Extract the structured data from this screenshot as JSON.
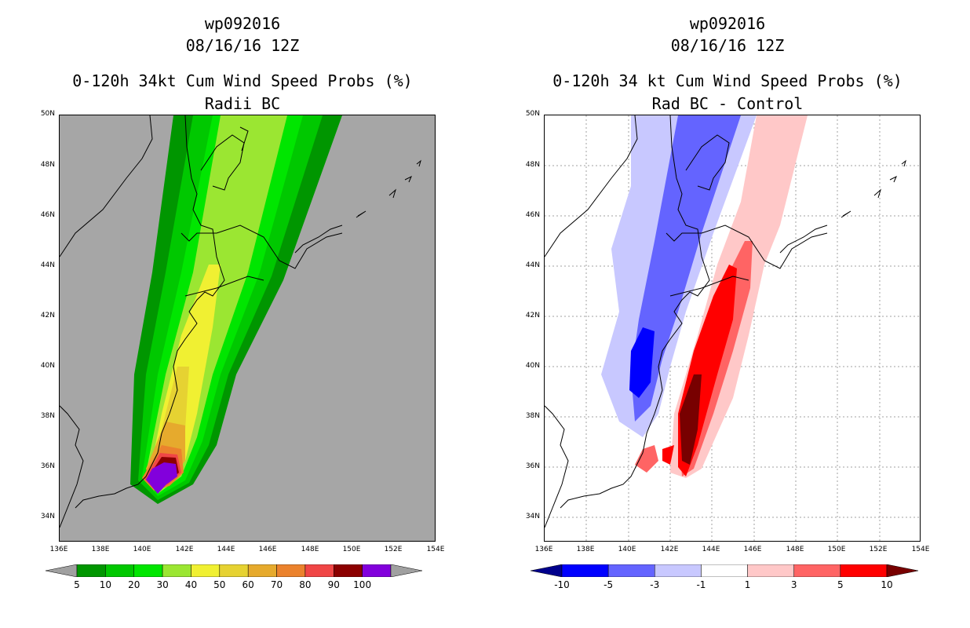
{
  "left": {
    "title1": "wp092016",
    "title2": "08/16/16 12Z",
    "title3": "0-120h 34kt Cum Wind Speed Probs (%)",
    "title4": "Radii BC",
    "colorbar": {
      "labels": [
        "5",
        "10",
        "20",
        "30",
        "40",
        "50",
        "60",
        "70",
        "80",
        "90",
        "100"
      ],
      "colors": [
        "#009600",
        "#00c800",
        "#00e600",
        "#9be632",
        "#f0f032",
        "#e6d232",
        "#e6aa2d",
        "#eb822d",
        "#f04646",
        "#8c0000",
        "#8200dc"
      ],
      "under_color": "#a0a0a0",
      "over_color": "#a0a0a0"
    }
  },
  "right": {
    "title1": "wp092016",
    "title2": "08/16/16 12Z",
    "title3": "0-120h 34 kt Cum Wind Speed Probs (%)",
    "title4": "Rad BC - Control",
    "colorbar": {
      "labels": [
        "-10",
        "-5",
        "-3",
        "-1",
        "1",
        "3",
        "5",
        "10"
      ],
      "colors": [
        "#0000ff",
        "#6464ff",
        "#c8c8ff",
        "#ffffff",
        "#ffc8c8",
        "#ff6464",
        "#ff0000"
      ],
      "under_color": "#00008c",
      "over_color": "#780000"
    }
  },
  "lat_labels": [
    "50N",
    "48N",
    "46N",
    "44N",
    "42N",
    "40N",
    "38N",
    "36N",
    "34N"
  ],
  "lon_labels": [
    "136E",
    "138E",
    "140E",
    "142E",
    "144E",
    "146E",
    "148E",
    "150E",
    "152E",
    "154E"
  ],
  "colors": {
    "land_bg_left": "#a6a6a6",
    "grid": "#a0a0a0"
  }
}
